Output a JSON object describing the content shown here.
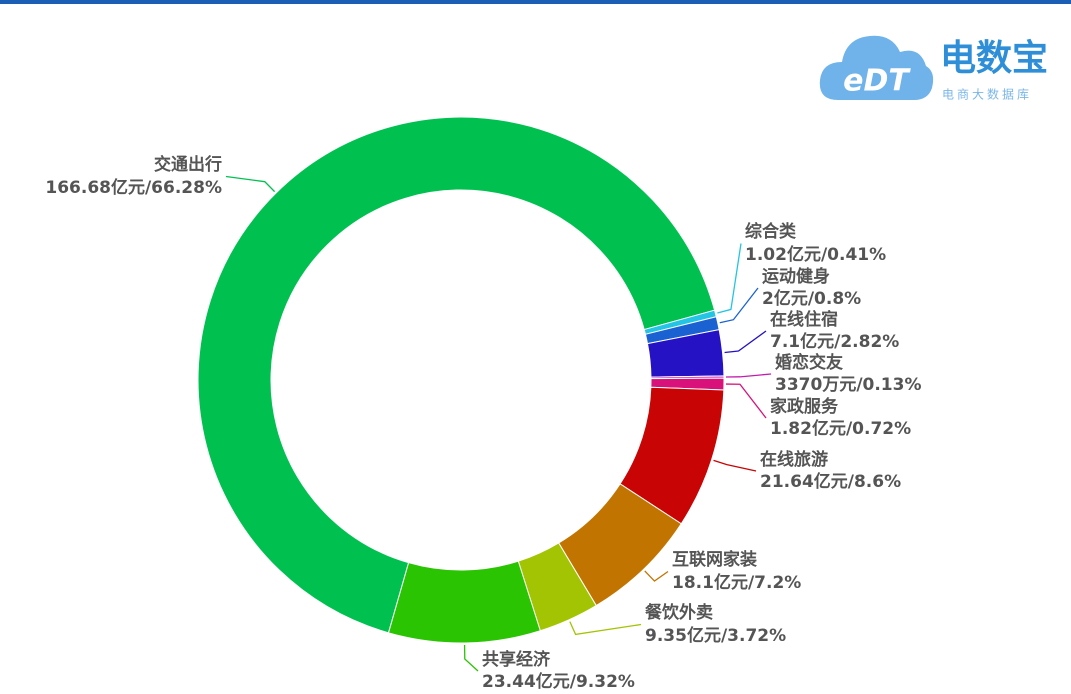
{
  "logo": {
    "mark": "eDT",
    "name": "电数宝",
    "tagline": "电商大数据库"
  },
  "chart_data": {
    "type": "pie",
    "donut": true,
    "categories": [
      "交通出行",
      "综合类",
      "运动健身",
      "在线住宿",
      "婚恋交友",
      "家政服务",
      "在线旅游",
      "互联网家装",
      "餐饮外卖",
      "共享经济"
    ],
    "values": [
      66.28,
      0.41,
      0.8,
      2.82,
      0.13,
      0.72,
      8.6,
      7.2,
      3.72,
      9.32
    ],
    "value_labels": [
      "166.68亿元/66.28%",
      "1.02亿元/0.41%",
      "2亿元/0.8%",
      "7.1亿元/2.82%",
      "3370万元/0.13%",
      "1.82亿元/0.72%",
      "21.64亿元/8.6%",
      "18.1亿元/7.2%",
      "9.35亿元/3.72%",
      "23.44亿元/9.32%"
    ],
    "colors": [
      "#00c150",
      "#24c4e4",
      "#1a62d2",
      "#2412c4",
      "#c21cae",
      "#d8127a",
      "#c80404",
      "#c27400",
      "#a2c402",
      "#2ac402"
    ]
  }
}
